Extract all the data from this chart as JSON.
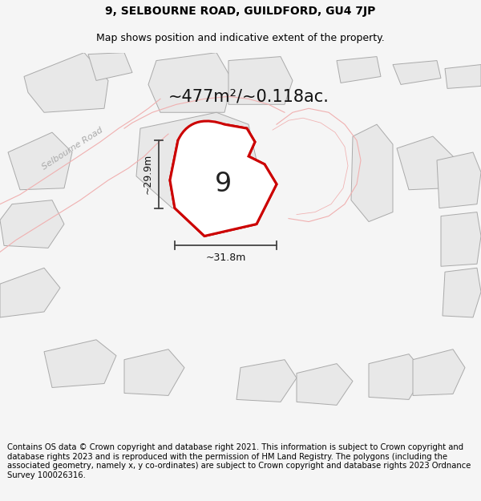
{
  "title_line1": "9, SELBOURNE ROAD, GUILDFORD, GU4 7JP",
  "title_line2": "Map shows position and indicative extent of the property.",
  "area_text": "~477m²/~0.118ac.",
  "property_number": "9",
  "dim_vertical": "~29.9m",
  "dim_horizontal": "~31.8m",
  "footer_text": "Contains OS data © Crown copyright and database right 2021. This information is subject to Crown copyright and database rights 2023 and is reproduced with the permission of HM Land Registry. The polygons (including the associated geometry, namely x, y co-ordinates) are subject to Crown copyright and database rights 2023 Ordnance Survey 100026316.",
  "bg_color": "#f5f5f5",
  "map_bg_color": "#ffffff",
  "building_fill": "#e8e8e8",
  "building_edge": "#aaaaaa",
  "road_fill_color": "#f5f5f5",
  "road_outline_color": "#f0b0b0",
  "property_fill": "#ffffff",
  "property_stroke": "#cc0000",
  "road_label": "Selbourne Road",
  "footer_fontsize": 7.2,
  "title_fontsize": 10,
  "subtitle_fontsize": 9
}
